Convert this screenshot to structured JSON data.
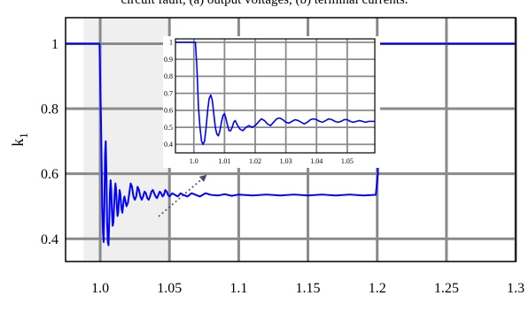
{
  "caption": "circuit fault, (a) output voltages, (b) terminal currents.",
  "chart_data": [
    {
      "type": "line",
      "ylabel": "k",
      "ylabel_subscript": "1",
      "xlim": [
        0.975,
        1.3
      ],
      "ylim": [
        0.33,
        1.08
      ],
      "x_ticks": [
        1.0,
        1.05,
        1.1,
        1.15,
        1.2,
        1.25,
        1.3
      ],
      "x_tick_labels": [
        "1.0",
        "1.05",
        "1.1",
        "1.15",
        "1.2",
        "1.25",
        "1.3"
      ],
      "y_ticks": [
        0.4,
        0.6,
        0.8,
        1.0
      ],
      "y_tick_labels": [
        "0.4",
        "0.6",
        "0.8",
        "1"
      ],
      "grid": true,
      "highlight_region": [
        0.988,
        1.05
      ],
      "series": [
        {
          "color": "#0000ff",
          "points": [
            [
              0.975,
              1.0
            ],
            [
              0.9995,
              1.0
            ],
            [
              1.0005,
              0.78
            ],
            [
              1.0015,
              0.5
            ],
            [
              1.002,
              0.42
            ],
            [
              1.0025,
              0.39
            ],
            [
              1.003,
              0.5
            ],
            [
              1.0035,
              0.66
            ],
            [
              1.004,
              0.7
            ],
            [
              1.0045,
              0.6
            ],
            [
              1.005,
              0.45
            ],
            [
              1.0055,
              0.39
            ],
            [
              1.006,
              0.38
            ],
            [
              1.0065,
              0.45
            ],
            [
              1.007,
              0.54
            ],
            [
              1.0075,
              0.58
            ],
            [
              1.008,
              0.55
            ],
            [
              1.0085,
              0.48
            ],
            [
              1.009,
              0.44
            ],
            [
              1.0095,
              0.45
            ],
            [
              1.01,
              0.5
            ],
            [
              1.0105,
              0.54
            ],
            [
              1.011,
              0.57
            ],
            [
              1.0115,
              0.55
            ],
            [
              1.012,
              0.5
            ],
            [
              1.0125,
              0.47
            ],
            [
              1.013,
              0.48
            ],
            [
              1.0135,
              0.52
            ],
            [
              1.014,
              0.55
            ],
            [
              1.0145,
              0.54
            ],
            [
              1.015,
              0.51
            ],
            [
              1.0155,
              0.49
            ],
            [
              1.016,
              0.48
            ],
            [
              1.0165,
              0.5
            ],
            [
              1.017,
              0.52
            ],
            [
              1.0175,
              0.53
            ],
            [
              1.018,
              0.52
            ],
            [
              1.019,
              0.5
            ],
            [
              1.02,
              0.51
            ],
            [
              1.021,
              0.54
            ],
            [
              1.022,
              0.57
            ],
            [
              1.023,
              0.56
            ],
            [
              1.024,
              0.53
            ],
            [
              1.025,
              0.52
            ],
            [
              1.026,
              0.53
            ],
            [
              1.027,
              0.56
            ],
            [
              1.028,
              0.55
            ],
            [
              1.029,
              0.53
            ],
            [
              1.03,
              0.52
            ],
            [
              1.031,
              0.53
            ],
            [
              1.032,
              0.545
            ],
            [
              1.033,
              0.54
            ],
            [
              1.034,
              0.525
            ],
            [
              1.035,
              0.52
            ],
            [
              1.036,
              0.53
            ],
            [
              1.037,
              0.545
            ],
            [
              1.038,
              0.55
            ],
            [
              1.039,
              0.54
            ],
            [
              1.04,
              0.53
            ],
            [
              1.041,
              0.525
            ],
            [
              1.042,
              0.535
            ],
            [
              1.043,
              0.545
            ],
            [
              1.044,
              0.54
            ],
            [
              1.045,
              0.53
            ],
            [
              1.046,
              0.535
            ],
            [
              1.047,
              0.55
            ],
            [
              1.048,
              0.545
            ],
            [
              1.049,
              0.535
            ],
            [
              1.05,
              0.53
            ],
            [
              1.052,
              0.54
            ],
            [
              1.054,
              0.535
            ],
            [
              1.056,
              0.53
            ],
            [
              1.058,
              0.54
            ],
            [
              1.06,
              0.535
            ],
            [
              1.063,
              0.53
            ],
            [
              1.066,
              0.54
            ],
            [
              1.069,
              0.535
            ],
            [
              1.072,
              0.53
            ],
            [
              1.076,
              0.54
            ],
            [
              1.08,
              0.535
            ],
            [
              1.085,
              0.533
            ],
            [
              1.09,
              0.537
            ],
            [
              1.095,
              0.532
            ],
            [
              1.1,
              0.536
            ],
            [
              1.11,
              0.533
            ],
            [
              1.12,
              0.536
            ],
            [
              1.13,
              0.533
            ],
            [
              1.14,
              0.536
            ],
            [
              1.15,
              0.533
            ],
            [
              1.16,
              0.536
            ],
            [
              1.17,
              0.533
            ],
            [
              1.18,
              0.536
            ],
            [
              1.19,
              0.533
            ],
            [
              1.199,
              0.535
            ],
            [
              1.2005,
              0.6
            ],
            [
              1.201,
              0.9
            ],
            [
              1.2015,
              1.0
            ],
            [
              1.3,
              1.0
            ]
          ]
        }
      ]
    },
    {
      "type": "line",
      "role": "inset",
      "xlim": [
        0.994,
        1.059
      ],
      "ylim": [
        0.35,
        1.02
      ],
      "x_ticks": [
        1.0,
        1.01,
        1.02,
        1.03,
        1.04,
        1.05
      ],
      "x_tick_labels": [
        "1.0",
        "1.01",
        "1.02",
        "1.03",
        "1.04",
        "1.05"
      ],
      "y_ticks": [
        0.4,
        0.5,
        0.6,
        0.7,
        0.8,
        0.9,
        1.0
      ],
      "y_tick_labels": [
        "0.4",
        "0.5",
        "0.6",
        "0.7",
        "0.8",
        "0.9",
        "1"
      ],
      "grid": true,
      "series": [
        {
          "color": "#0000ff",
          "points": [
            [
              0.994,
              1.0
            ],
            [
              1.0005,
              1.0
            ],
            [
              1.001,
              0.85
            ],
            [
              1.0015,
              0.62
            ],
            [
              1.002,
              0.5
            ],
            [
              1.0025,
              0.42
            ],
            [
              1.003,
              0.4
            ],
            [
              1.0035,
              0.42
            ],
            [
              1.004,
              0.5
            ],
            [
              1.0045,
              0.6
            ],
            [
              1.005,
              0.67
            ],
            [
              1.0055,
              0.69
            ],
            [
              1.006,
              0.66
            ],
            [
              1.0065,
              0.58
            ],
            [
              1.007,
              0.5
            ],
            [
              1.0075,
              0.46
            ],
            [
              1.008,
              0.45
            ],
            [
              1.0085,
              0.48
            ],
            [
              1.009,
              0.53
            ],
            [
              1.0095,
              0.57
            ],
            [
              1.01,
              0.58
            ],
            [
              1.0105,
              0.55
            ],
            [
              1.011,
              0.51
            ],
            [
              1.0115,
              0.48
            ],
            [
              1.012,
              0.48
            ],
            [
              1.0125,
              0.5
            ],
            [
              1.013,
              0.53
            ],
            [
              1.0135,
              0.54
            ],
            [
              1.014,
              0.52
            ],
            [
              1.015,
              0.49
            ],
            [
              1.016,
              0.48
            ],
            [
              1.017,
              0.5
            ],
            [
              1.018,
              0.51
            ],
            [
              1.019,
              0.5
            ],
            [
              1.02,
              0.51
            ],
            [
              1.021,
              0.53
            ],
            [
              1.022,
              0.55
            ],
            [
              1.023,
              0.54
            ],
            [
              1.024,
              0.52
            ],
            [
              1.025,
              0.51
            ],
            [
              1.026,
              0.53
            ],
            [
              1.027,
              0.55
            ],
            [
              1.028,
              0.555
            ],
            [
              1.029,
              0.545
            ],
            [
              1.03,
              0.53
            ],
            [
              1.031,
              0.525
            ],
            [
              1.032,
              0.535
            ],
            [
              1.033,
              0.545
            ],
            [
              1.034,
              0.54
            ],
            [
              1.035,
              0.53
            ],
            [
              1.036,
              0.52
            ],
            [
              1.037,
              0.53
            ],
            [
              1.038,
              0.545
            ],
            [
              1.039,
              0.55
            ],
            [
              1.04,
              0.545
            ],
            [
              1.041,
              0.535
            ],
            [
              1.042,
              0.53
            ],
            [
              1.043,
              0.54
            ],
            [
              1.044,
              0.55
            ],
            [
              1.045,
              0.545
            ],
            [
              1.046,
              0.535
            ],
            [
              1.047,
              0.53
            ],
            [
              1.048,
              0.535
            ],
            [
              1.049,
              0.545
            ],
            [
              1.05,
              0.545
            ],
            [
              1.051,
              0.535
            ],
            [
              1.052,
              0.53
            ],
            [
              1.053,
              0.535
            ],
            [
              1.054,
              0.54
            ],
            [
              1.055,
              0.535
            ],
            [
              1.056,
              0.53
            ],
            [
              1.057,
              0.535
            ],
            [
              1.059,
              0.535
            ]
          ]
        }
      ]
    }
  ]
}
